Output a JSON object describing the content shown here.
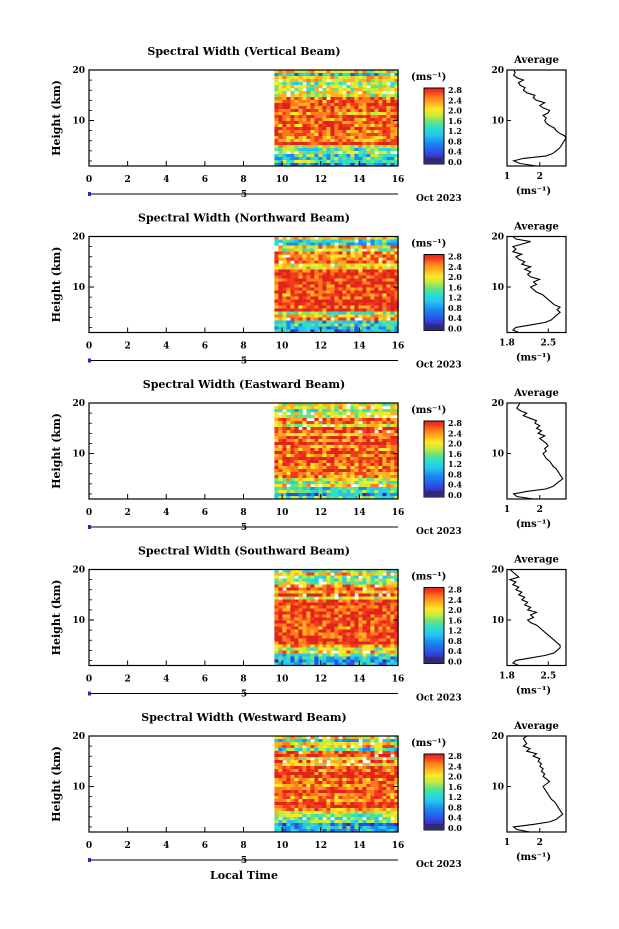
{
  "x_label": "Local Time",
  "date_label": "Oct 2023",
  "day_marker": "5",
  "colorbar": {
    "unit": "(ms⁻¹)",
    "labels": [
      "2.8",
      "2.4",
      "2.0",
      "1.6",
      "1.2",
      "0.8",
      "0.4",
      "0.0"
    ],
    "colors": [
      "#2b2b7a",
      "#4a1fa8",
      "#2c4fe6",
      "#1a8bf0",
      "#27c4f2",
      "#2de0c8",
      "#6ee27a",
      "#c8ec3c",
      "#ffe62a",
      "#ffb01e",
      "#ff7a1c",
      "#f23a1f",
      "#e0241c"
    ]
  },
  "panels": [
    {
      "title": "Spectral Width (Vertical Beam)",
      "x_ticks": [
        "0",
        "2",
        "4",
        "6",
        "8",
        "10",
        "12",
        "14",
        "16"
      ],
      "y_ticks": [
        "20",
        "10"
      ],
      "ylabel": "Height (km)",
      "avg_title": "Average",
      "avg_unit": "(ms⁻¹)",
      "avg_xticks": [
        "1",
        "2"
      ],
      "avg_yticks": [
        "20",
        "10"
      ]
    },
    {
      "title": "Spectral Width (Northward Beam)",
      "x_ticks": [
        "0",
        "2",
        "4",
        "6",
        "8",
        "10",
        "12",
        "14",
        "16"
      ],
      "y_ticks": [
        "20",
        "10"
      ],
      "ylabel": "Height (km)",
      "avg_title": "Average",
      "avg_unit": "(ms⁻¹)",
      "avg_xticks": [
        "1.8",
        "2.5"
      ],
      "avg_yticks": [
        "20",
        "10"
      ]
    },
    {
      "title": "Spectral Width (Eastward Beam)",
      "x_ticks": [
        "0",
        "2",
        "4",
        "6",
        "8",
        "10",
        "12",
        "14",
        "16"
      ],
      "y_ticks": [
        "20",
        "10"
      ],
      "ylabel": "Height (km)",
      "avg_title": "Average",
      "avg_unit": "(ms⁻¹)",
      "avg_xticks": [
        "1",
        "2"
      ],
      "avg_yticks": [
        "20",
        "10"
      ]
    },
    {
      "title": "Spectral Width (Southward Beam)",
      "x_ticks": [
        "0",
        "2",
        "4",
        "6",
        "8",
        "10",
        "12",
        "14",
        "16"
      ],
      "y_ticks": [
        "20",
        "10"
      ],
      "ylabel": "Height (km)",
      "avg_title": "Average",
      "avg_unit": "(ms⁻¹)",
      "avg_xticks": [
        "1.8",
        "2.5"
      ],
      "avg_yticks": [
        "20",
        "10"
      ]
    },
    {
      "title": "Spectral Width (Westward Beam)",
      "x_ticks": [
        "0",
        "2",
        "4",
        "6",
        "8",
        "10",
        "12",
        "14",
        "16"
      ],
      "y_ticks": [
        "20",
        "10"
      ],
      "ylabel": "Height (km)",
      "avg_title": "Average",
      "avg_unit": "(ms⁻¹)",
      "avg_xticks": [
        "1",
        "2"
      ],
      "avg_yticks": [
        "20",
        "10"
      ]
    }
  ],
  "chart_data": [
    {
      "type": "heatmap",
      "title": "Spectral Width (Vertical Beam)",
      "xlabel": "Local Time",
      "ylabel": "Height (km)",
      "xlim": [
        0,
        16
      ],
      "ylim": [
        1,
        20
      ],
      "data_start_x": 9.6,
      "colorbar_unit": "(ms⁻¹)",
      "zlim": [
        0.0,
        2.8
      ],
      "profile": {
        "title": "Average",
        "xlim": [
          1,
          2.8
        ],
        "ylim": [
          1,
          20
        ],
        "heights": [
          1,
          1.5,
          2,
          2.5,
          3,
          3.5,
          4,
          4.5,
          5,
          5.5,
          6,
          6.5,
          7,
          7.5,
          8,
          8.5,
          9,
          9.5,
          10,
          10.5,
          11,
          11.5,
          12,
          12.5,
          13,
          13.5,
          14,
          14.5,
          15,
          15.5,
          16,
          16.5,
          17,
          17.5,
          18,
          18.5,
          19,
          19.5,
          20
        ],
        "values": [
          1.9,
          1.4,
          1.2,
          1.5,
          2.2,
          2.4,
          2.5,
          2.6,
          2.65,
          2.7,
          2.75,
          2.8,
          2.75,
          2.6,
          2.5,
          2.45,
          2.3,
          2.2,
          2.15,
          2.2,
          2.1,
          2.25,
          2.3,
          2.1,
          2.0,
          2.15,
          1.9,
          1.8,
          1.85,
          1.6,
          1.5,
          1.55,
          1.4,
          1.35,
          1.5,
          1.3,
          1.2,
          1.25,
          1.2
        ]
      }
    },
    {
      "type": "heatmap",
      "title": "Spectral Width (Northward Beam)",
      "xlabel": "Local Time",
      "ylabel": "Height (km)",
      "xlim": [
        0,
        16
      ],
      "ylim": [
        1,
        20
      ],
      "data_start_x": 9.6,
      "colorbar_unit": "(ms⁻¹)",
      "zlim": [
        0.0,
        2.8
      ],
      "profile": {
        "title": "Average",
        "xlim": [
          1.8,
          2.8
        ],
        "ylim": [
          1,
          20
        ],
        "heights": [
          1,
          1.5,
          2,
          2.5,
          3,
          3.5,
          4,
          4.5,
          5,
          5.5,
          6,
          6.5,
          7,
          7.5,
          8,
          8.5,
          9,
          9.5,
          10,
          10.5,
          11,
          11.5,
          12,
          12.5,
          13,
          13.5,
          14,
          14.5,
          15,
          15.5,
          16,
          16.5,
          17,
          17.5,
          18,
          18.5,
          19,
          19.5,
          20
        ],
        "values": [
          2.0,
          1.9,
          1.95,
          2.2,
          2.45,
          2.55,
          2.6,
          2.65,
          2.7,
          2.65,
          2.7,
          2.6,
          2.55,
          2.5,
          2.45,
          2.4,
          2.3,
          2.25,
          2.2,
          2.3,
          2.25,
          2.35,
          2.2,
          2.15,
          2.2,
          2.1,
          2.2,
          2.05,
          2.1,
          2.0,
          1.95,
          2.05,
          1.9,
          1.95,
          1.9,
          2.05,
          2.2,
          1.95,
          1.9
        ]
      }
    },
    {
      "type": "heatmap",
      "title": "Spectral Width (Eastward Beam)",
      "xlabel": "Local Time",
      "ylabel": "Height (km)",
      "xlim": [
        0,
        16
      ],
      "ylim": [
        1,
        20
      ],
      "data_start_x": 9.6,
      "colorbar_unit": "(ms⁻¹)",
      "zlim": [
        0.0,
        2.8
      ],
      "profile": {
        "title": "Average",
        "xlim": [
          1,
          2.8
        ],
        "ylim": [
          1,
          20
        ],
        "heights": [
          1,
          1.5,
          2,
          2.5,
          3,
          3.5,
          4,
          4.5,
          5,
          5.5,
          6,
          6.5,
          7,
          7.5,
          8,
          8.5,
          9,
          9.5,
          10,
          10.5,
          11,
          11.5,
          12,
          12.5,
          13,
          13.5,
          14,
          14.5,
          15,
          15.5,
          16,
          16.5,
          17,
          17.5,
          18,
          18.5,
          19,
          19.5,
          20
        ],
        "values": [
          1.8,
          1.3,
          1.2,
          1.6,
          2.2,
          2.4,
          2.5,
          2.6,
          2.7,
          2.65,
          2.6,
          2.55,
          2.5,
          2.4,
          2.35,
          2.3,
          2.2,
          2.15,
          2.1,
          2.2,
          2.15,
          2.25,
          2.2,
          2.1,
          2.0,
          2.15,
          1.95,
          2.05,
          1.9,
          2.0,
          1.85,
          1.9,
          1.7,
          1.5,
          1.6,
          1.4,
          1.3,
          1.35,
          1.4
        ]
      }
    },
    {
      "type": "heatmap",
      "title": "Spectral Width (Southward Beam)",
      "xlabel": "Local Time",
      "ylabel": "Height (km)",
      "xlim": [
        0,
        16
      ],
      "ylim": [
        1,
        20
      ],
      "data_start_x": 9.6,
      "colorbar_unit": "(ms⁻¹)",
      "zlim": [
        0.0,
        2.8
      ],
      "profile": {
        "title": "Average",
        "xlim": [
          1.8,
          2.8
        ],
        "ylim": [
          1,
          20
        ],
        "heights": [
          1,
          1.5,
          2,
          2.5,
          3,
          3.5,
          4,
          4.5,
          5,
          5.5,
          6,
          6.5,
          7,
          7.5,
          8,
          8.5,
          9,
          9.5,
          10,
          10.5,
          11,
          11.5,
          12,
          12.5,
          13,
          13.5,
          14,
          14.5,
          15,
          15.5,
          16,
          16.5,
          17,
          17.5,
          18,
          18.5,
          19,
          19.5,
          20
        ],
        "values": [
          2.0,
          1.9,
          1.95,
          2.2,
          2.45,
          2.6,
          2.65,
          2.7,
          2.7,
          2.65,
          2.6,
          2.55,
          2.5,
          2.45,
          2.4,
          2.35,
          2.3,
          2.2,
          2.15,
          2.25,
          2.2,
          2.3,
          2.15,
          2.2,
          2.1,
          2.15,
          2.05,
          2.1,
          2.0,
          2.05,
          1.95,
          2.0,
          1.9,
          1.95,
          1.85,
          2.0,
          1.95,
          1.9,
          1.85
        ]
      }
    },
    {
      "type": "heatmap",
      "title": "Spectral Width (Westward Beam)",
      "xlabel": "Local Time",
      "ylabel": "Height (km)",
      "xlim": [
        0,
        16
      ],
      "ylim": [
        1,
        20
      ],
      "data_start_x": 9.6,
      "colorbar_unit": "(ms⁻¹)",
      "zlim": [
        0.0,
        2.8
      ],
      "profile": {
        "title": "Average",
        "xlim": [
          1,
          2.8
        ],
        "ylim": [
          1,
          20
        ],
        "heights": [
          1,
          1.5,
          2,
          2.5,
          3,
          3.5,
          4,
          4.5,
          5,
          5.5,
          6,
          6.5,
          7,
          7.5,
          8,
          8.5,
          9,
          9.5,
          10,
          10.5,
          11,
          11.5,
          12,
          12.5,
          13,
          13.5,
          14,
          14.5,
          15,
          15.5,
          16,
          16.5,
          17,
          17.5,
          18,
          18.5,
          19,
          19.5,
          20
        ],
        "values": [
          1.7,
          1.3,
          1.2,
          1.8,
          2.3,
          2.5,
          2.6,
          2.7,
          2.65,
          2.6,
          2.55,
          2.5,
          2.45,
          2.35,
          2.3,
          2.25,
          2.2,
          2.15,
          2.1,
          2.2,
          2.3,
          2.2,
          2.1,
          2.15,
          2.05,
          2.1,
          2.0,
          2.05,
          1.95,
          2.0,
          1.8,
          1.9,
          1.6,
          1.7,
          1.5,
          1.6,
          1.55,
          1.5,
          1.6
        ]
      }
    }
  ]
}
